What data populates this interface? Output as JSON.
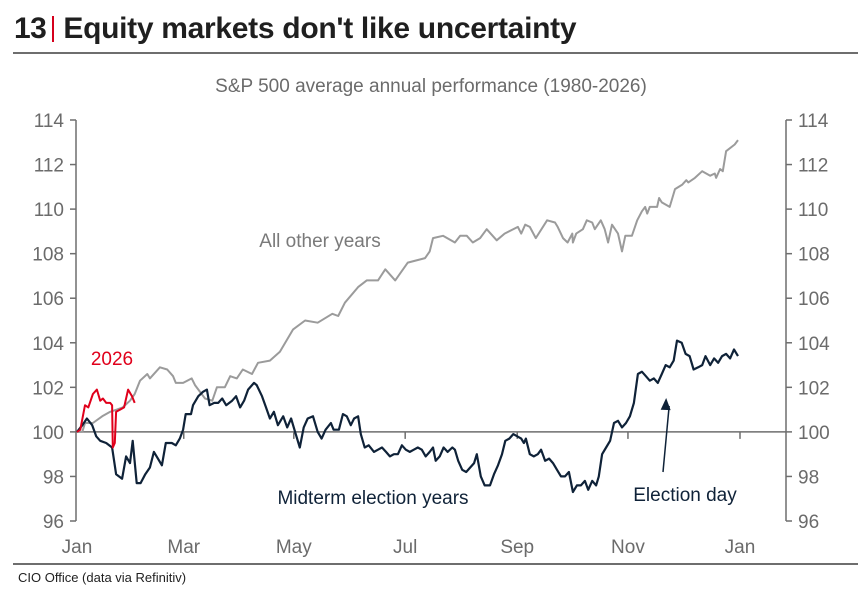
{
  "header": {
    "number": "13",
    "title": "Equity markets don't like uncertainty"
  },
  "footer": {
    "source": "CIO Office (data via Refinitiv)"
  },
  "chart_data": {
    "type": "line",
    "title": "S&P 500 average annual performance (1980-2026)",
    "xlabel": "",
    "ylabel": "",
    "x_unit": "fraction of calendar year (0 = Jan 1, 1 = following Jan 1)",
    "xlim": [
      0,
      1
    ],
    "ylim": [
      96,
      114
    ],
    "baseline": 100,
    "grid": false,
    "y_ticks": [
      96,
      98,
      100,
      102,
      104,
      106,
      108,
      110,
      112,
      114
    ],
    "y_axes": [
      "left",
      "right"
    ],
    "x_ticks": [
      {
        "label": "Jan",
        "x": 0.0
      },
      {
        "label": "Mar",
        "x": 0.161
      },
      {
        "label": "May",
        "x": 0.327
      },
      {
        "label": "Jul",
        "x": 0.495
      },
      {
        "label": "Sep",
        "x": 0.664
      },
      {
        "label": "Nov",
        "x": 0.831
      },
      {
        "label": "Jan",
        "x": 1.0
      }
    ],
    "annotations": [
      {
        "text": "All other years",
        "series": "All other years"
      },
      {
        "text": "Midterm election years",
        "series": "Midterm election years"
      },
      {
        "text": "2026",
        "series": "2026"
      },
      {
        "text": "Election day",
        "arrow_to_x": 0.866,
        "arrow_to_y": 100.4
      }
    ],
    "series": [
      {
        "name": "All other years",
        "color": "#9b9b9b",
        "points": [
          [
            0.0,
            100.0
          ],
          [
            0.008,
            100.0
          ],
          [
            0.012,
            100.4
          ],
          [
            0.024,
            100.4
          ],
          [
            0.038,
            100.7
          ],
          [
            0.05,
            100.9
          ],
          [
            0.06,
            101.0
          ],
          [
            0.069,
            101.1
          ],
          [
            0.08,
            101.4
          ],
          [
            0.087,
            101.7
          ],
          [
            0.095,
            102.3
          ],
          [
            0.106,
            102.6
          ],
          [
            0.11,
            102.4
          ],
          [
            0.125,
            102.9
          ],
          [
            0.136,
            102.8
          ],
          [
            0.145,
            102.5
          ],
          [
            0.149,
            102.2
          ],
          [
            0.16,
            102.2
          ],
          [
            0.173,
            102.4
          ],
          [
            0.178,
            102.1
          ],
          [
            0.193,
            101.5
          ],
          [
            0.204,
            101.4
          ],
          [
            0.211,
            102.0
          ],
          [
            0.223,
            102.0
          ],
          [
            0.231,
            102.5
          ],
          [
            0.241,
            102.4
          ],
          [
            0.25,
            102.8
          ],
          [
            0.264,
            102.6
          ],
          [
            0.273,
            103.1
          ],
          [
            0.291,
            103.2
          ],
          [
            0.306,
            103.6
          ],
          [
            0.326,
            104.6
          ],
          [
            0.344,
            105.0
          ],
          [
            0.363,
            104.9
          ],
          [
            0.385,
            105.3
          ],
          [
            0.394,
            105.2
          ],
          [
            0.404,
            105.8
          ],
          [
            0.424,
            106.5
          ],
          [
            0.437,
            106.8
          ],
          [
            0.454,
            106.8
          ],
          [
            0.465,
            107.3
          ],
          [
            0.48,
            106.8
          ],
          [
            0.499,
            107.6
          ],
          [
            0.525,
            107.8
          ],
          [
            0.532,
            108.1
          ],
          [
            0.537,
            108.7
          ],
          [
            0.552,
            108.8
          ],
          [
            0.57,
            108.5
          ],
          [
            0.578,
            108.8
          ],
          [
            0.588,
            108.8
          ],
          [
            0.597,
            108.5
          ],
          [
            0.608,
            108.7
          ],
          [
            0.618,
            109.1
          ],
          [
            0.633,
            108.6
          ],
          [
            0.645,
            108.9
          ],
          [
            0.665,
            109.2
          ],
          [
            0.67,
            108.9
          ],
          [
            0.676,
            109.3
          ],
          [
            0.683,
            109.2
          ],
          [
            0.692,
            108.7
          ],
          [
            0.709,
            109.5
          ],
          [
            0.721,
            109.4
          ],
          [
            0.725,
            109.2
          ],
          [
            0.733,
            108.7
          ],
          [
            0.74,
            108.5
          ],
          [
            0.747,
            108.9
          ],
          [
            0.748,
            108.5
          ],
          [
            0.753,
            108.9
          ],
          [
            0.763,
            109.1
          ],
          [
            0.769,
            109.5
          ],
          [
            0.777,
            109.4
          ],
          [
            0.781,
            109.1
          ],
          [
            0.79,
            109.5
          ],
          [
            0.796,
            109.1
          ],
          [
            0.801,
            108.5
          ],
          [
            0.807,
            109.3
          ],
          [
            0.816,
            108.9
          ],
          [
            0.822,
            108.1
          ],
          [
            0.827,
            108.8
          ],
          [
            0.837,
            108.8
          ],
          [
            0.845,
            109.5
          ],
          [
            0.852,
            109.9
          ],
          [
            0.857,
            110.1
          ],
          [
            0.86,
            109.8
          ],
          [
            0.864,
            110.1
          ],
          [
            0.875,
            110.1
          ],
          [
            0.878,
            110.5
          ],
          [
            0.882,
            110.3
          ],
          [
            0.894,
            110.1
          ],
          [
            0.902,
            110.9
          ],
          [
            0.913,
            111.1
          ],
          [
            0.919,
            111.3
          ],
          [
            0.922,
            111.2
          ],
          [
            0.932,
            111.4
          ],
          [
            0.943,
            111.7
          ],
          [
            0.955,
            111.5
          ],
          [
            0.962,
            111.6
          ],
          [
            0.964,
            111.4
          ],
          [
            0.97,
            111.8
          ],
          [
            0.974,
            111.7
          ],
          [
            0.979,
            112.6
          ],
          [
            0.992,
            112.9
          ],
          [
            0.997,
            113.1
          ]
        ]
      },
      {
        "name": "Midterm election years",
        "color": "#0f2238",
        "points": [
          [
            0.0,
            100.0
          ],
          [
            0.008,
            100.3
          ],
          [
            0.015,
            100.6
          ],
          [
            0.023,
            100.3
          ],
          [
            0.029,
            99.8
          ],
          [
            0.035,
            99.6
          ],
          [
            0.044,
            99.5
          ],
          [
            0.053,
            99.3
          ],
          [
            0.059,
            98.1
          ],
          [
            0.068,
            97.9
          ],
          [
            0.074,
            98.9
          ],
          [
            0.08,
            98.6
          ],
          [
            0.084,
            99.6
          ],
          [
            0.09,
            97.7
          ],
          [
            0.096,
            97.7
          ],
          [
            0.103,
            98.1
          ],
          [
            0.11,
            98.4
          ],
          [
            0.116,
            99.1
          ],
          [
            0.122,
            98.8
          ],
          [
            0.128,
            98.5
          ],
          [
            0.134,
            99.5
          ],
          [
            0.143,
            99.5
          ],
          [
            0.149,
            99.4
          ],
          [
            0.155,
            99.7
          ],
          [
            0.16,
            100.1
          ],
          [
            0.164,
            100.8
          ],
          [
            0.172,
            100.8
          ],
          [
            0.175,
            101.2
          ],
          [
            0.183,
            101.6
          ],
          [
            0.19,
            101.8
          ],
          [
            0.196,
            101.9
          ],
          [
            0.2,
            101.2
          ],
          [
            0.207,
            101.3
          ],
          [
            0.213,
            101.3
          ],
          [
            0.219,
            101.5
          ],
          [
            0.225,
            101.2
          ],
          [
            0.234,
            101.4
          ],
          [
            0.24,
            101.6
          ],
          [
            0.246,
            101.1
          ],
          [
            0.252,
            101.4
          ],
          [
            0.258,
            101.9
          ],
          [
            0.267,
            102.2
          ],
          [
            0.271,
            102.1
          ],
          [
            0.279,
            101.6
          ],
          [
            0.285,
            101.1
          ],
          [
            0.291,
            100.6
          ],
          [
            0.297,
            100.9
          ],
          [
            0.303,
            100.3
          ],
          [
            0.311,
            100.7
          ],
          [
            0.317,
            100.2
          ],
          [
            0.323,
            100.6
          ],
          [
            0.329,
            100.0
          ],
          [
            0.336,
            99.3
          ],
          [
            0.342,
            100.2
          ],
          [
            0.348,
            100.6
          ],
          [
            0.356,
            100.7
          ],
          [
            0.363,
            100.0
          ],
          [
            0.369,
            99.7
          ],
          [
            0.375,
            100.1
          ],
          [
            0.383,
            100.4
          ],
          [
            0.387,
            100.1
          ],
          [
            0.395,
            100.1
          ],
          [
            0.401,
            100.8
          ],
          [
            0.407,
            100.7
          ],
          [
            0.413,
            100.3
          ],
          [
            0.418,
            100.6
          ],
          [
            0.424,
            100.7
          ],
          [
            0.428,
            99.9
          ],
          [
            0.434,
            99.3
          ],
          [
            0.44,
            99.4
          ],
          [
            0.448,
            99.1
          ],
          [
            0.454,
            99.2
          ],
          [
            0.46,
            99.3
          ],
          [
            0.466,
            99.1
          ],
          [
            0.472,
            98.9
          ],
          [
            0.478,
            99.0
          ],
          [
            0.484,
            99.0
          ],
          [
            0.49,
            99.4
          ],
          [
            0.496,
            99.2
          ],
          [
            0.502,
            99.1
          ],
          [
            0.508,
            99.2
          ],
          [
            0.514,
            99.3
          ],
          [
            0.52,
            99.2
          ],
          [
            0.526,
            98.9
          ],
          [
            0.532,
            99.1
          ],
          [
            0.537,
            99.3
          ],
          [
            0.541,
            98.7
          ],
          [
            0.547,
            98.9
          ],
          [
            0.553,
            99.3
          ],
          [
            0.559,
            99.1
          ],
          [
            0.566,
            99.3
          ],
          [
            0.57,
            99.2
          ],
          [
            0.575,
            98.7
          ],
          [
            0.581,
            98.3
          ],
          [
            0.587,
            98.2
          ],
          [
            0.593,
            98.4
          ],
          [
            0.599,
            98.6
          ],
          [
            0.603,
            99.0
          ],
          [
            0.609,
            98.0
          ],
          [
            0.615,
            97.6
          ],
          [
            0.623,
            97.6
          ],
          [
            0.629,
            98.1
          ],
          [
            0.635,
            98.5
          ],
          [
            0.641,
            99.0
          ],
          [
            0.646,
            99.6
          ],
          [
            0.652,
            99.7
          ],
          [
            0.658,
            99.9
          ],
          [
            0.664,
            99.8
          ],
          [
            0.67,
            99.7
          ],
          [
            0.674,
            99.5
          ],
          [
            0.677,
            99.7
          ],
          [
            0.683,
            99.0
          ],
          [
            0.689,
            98.9
          ],
          [
            0.695,
            99.0
          ],
          [
            0.7,
            99.2
          ],
          [
            0.706,
            98.7
          ],
          [
            0.712,
            98.8
          ],
          [
            0.718,
            98.6
          ],
          [
            0.724,
            98.3
          ],
          [
            0.73,
            98.0
          ],
          [
            0.736,
            98.0
          ],
          [
            0.742,
            98.2
          ],
          [
            0.748,
            97.3
          ],
          [
            0.754,
            97.6
          ],
          [
            0.76,
            97.6
          ],
          [
            0.766,
            97.8
          ],
          [
            0.771,
            97.4
          ],
          [
            0.777,
            97.8
          ],
          [
            0.783,
            97.6
          ],
          [
            0.787,
            98.0
          ],
          [
            0.792,
            99.0
          ],
          [
            0.798,
            99.3
          ],
          [
            0.804,
            99.6
          ],
          [
            0.81,
            100.4
          ],
          [
            0.816,
            100.5
          ],
          [
            0.822,
            100.2
          ],
          [
            0.828,
            100.4
          ],
          [
            0.834,
            100.7
          ],
          [
            0.84,
            101.3
          ],
          [
            0.846,
            102.6
          ],
          [
            0.852,
            102.7
          ],
          [
            0.858,
            102.5
          ],
          [
            0.864,
            102.3
          ],
          [
            0.87,
            102.4
          ],
          [
            0.876,
            102.2
          ],
          [
            0.882,
            102.6
          ],
          [
            0.888,
            103.0
          ],
          [
            0.894,
            102.9
          ],
          [
            0.9,
            103.2
          ],
          [
            0.905,
            104.1
          ],
          [
            0.912,
            104.0
          ],
          [
            0.918,
            103.5
          ],
          [
            0.924,
            103.4
          ],
          [
            0.93,
            102.8
          ],
          [
            0.937,
            102.9
          ],
          [
            0.943,
            103.0
          ],
          [
            0.948,
            103.4
          ],
          [
            0.955,
            103.0
          ],
          [
            0.961,
            103.3
          ],
          [
            0.967,
            103.1
          ],
          [
            0.973,
            103.4
          ],
          [
            0.979,
            103.5
          ],
          [
            0.985,
            103.3
          ],
          [
            0.991,
            103.7
          ],
          [
            0.997,
            103.4
          ]
        ]
      },
      {
        "name": "2026",
        "color": "#e0001b",
        "points": [
          [
            0.0,
            100.0
          ],
          [
            0.005,
            100.1
          ],
          [
            0.012,
            101.2
          ],
          [
            0.017,
            101.1
          ],
          [
            0.024,
            101.7
          ],
          [
            0.03,
            101.9
          ],
          [
            0.035,
            101.4
          ],
          [
            0.039,
            101.5
          ],
          [
            0.044,
            101.3
          ],
          [
            0.05,
            101.3
          ],
          [
            0.053,
            101.2
          ],
          [
            0.054,
            99.3
          ],
          [
            0.057,
            99.5
          ],
          [
            0.059,
            100.9
          ],
          [
            0.065,
            101.0
          ],
          [
            0.071,
            101.1
          ],
          [
            0.077,
            101.9
          ],
          [
            0.083,
            101.6
          ],
          [
            0.087,
            101.3
          ]
        ]
      }
    ]
  }
}
